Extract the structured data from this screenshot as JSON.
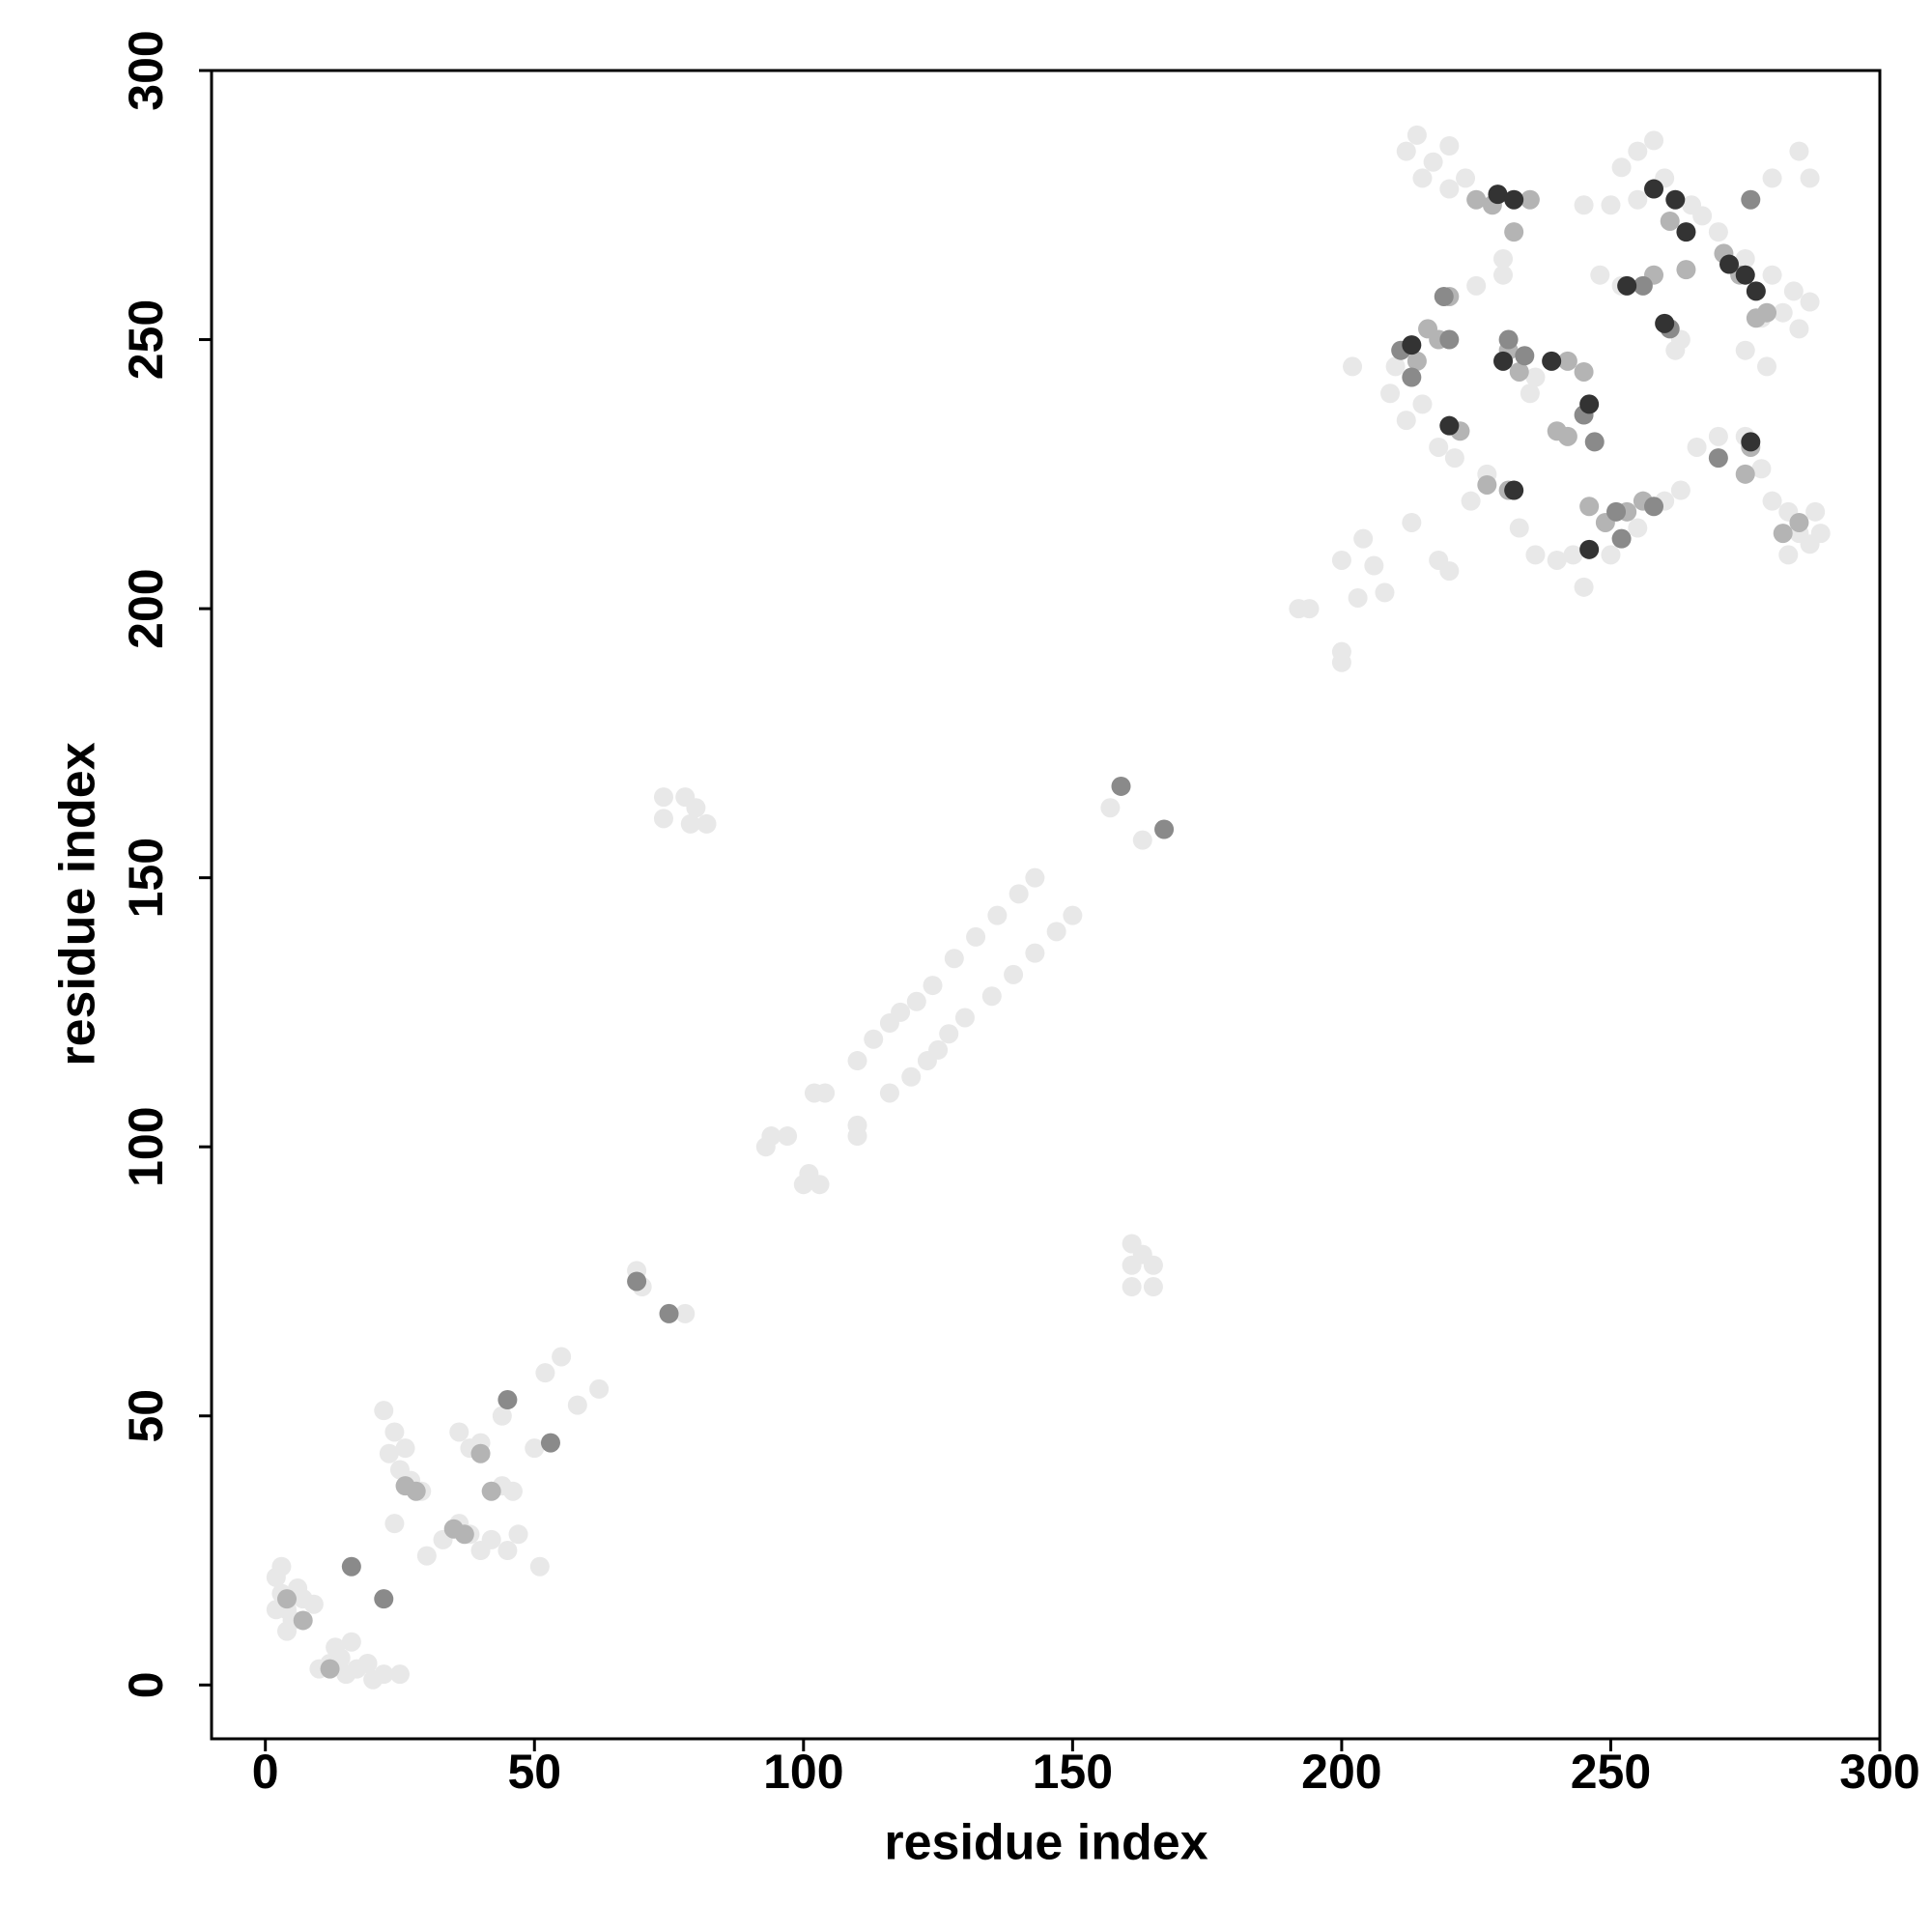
{
  "chart_data": {
    "type": "scatter",
    "xlabel": "residue index",
    "ylabel": "residue index",
    "xlim": [
      -10,
      300
    ],
    "ylim": [
      -10,
      300
    ],
    "xticks": [
      0,
      50,
      100,
      150,
      200,
      250,
      300
    ],
    "yticks": [
      0,
      50,
      100,
      150,
      200,
      250,
      300
    ],
    "grid": false,
    "series": [
      {
        "color": "#e8e8e8",
        "x": [
          2,
          3,
          4,
          5,
          3,
          6,
          2,
          4,
          7,
          9,
          10,
          12,
          14,
          15,
          17,
          19,
          22,
          25,
          13,
          16,
          20,
          22,
          24,
          25,
          27,
          26,
          29,
          24,
          30,
          36,
          38,
          40,
          36,
          38,
          40,
          44,
          46,
          47,
          45,
          42,
          23,
          33,
          44,
          50,
          52,
          55,
          58,
          62,
          51,
          69,
          70,
          75,
          78,
          74,
          78,
          80,
          74,
          79,
          82,
          161,
          163,
          165,
          161,
          161,
          165,
          93,
          94,
          97,
          100,
          101,
          103,
          102,
          104,
          110,
          110,
          110,
          113,
          116,
          118,
          121,
          124,
          128,
          132,
          136,
          140,
          143,
          116,
          120,
          123,
          125,
          127,
          130,
          135,
          139,
          143,
          147,
          150,
          157,
          163,
          192,
          194,
          200,
          200,
          200,
          202,
          203,
          204,
          206,
          208,
          213,
          218,
          220,
          212,
          214,
          217,
          220,
          215,
          220,
          223,
          225,
          230,
          230,
          236,
          235,
          210,
          209,
          212,
          215,
          218,
          221,
          224,
          227,
          233,
          236,
          240,
          243,
          245,
          250,
          255,
          260,
          263,
          266,
          270,
          275,
          278,
          280,
          283,
          285,
          287,
          289,
          288,
          283,
          285,
          287,
          284,
          282,
          280,
          285,
          287,
          275,
          270,
          265,
          260,
          255,
          258,
          252,
          250,
          245,
          248,
          252,
          262,
          263,
          275,
          279,
          278,
          280,
          267,
          255
        ],
        "y": [
          20,
          17,
          14,
          12,
          22,
          18,
          14,
          10,
          16,
          15,
          3,
          4,
          5,
          2,
          3,
          4,
          2,
          2,
          7,
          8,
          1,
          51,
          47,
          40,
          38,
          44,
          36,
          30,
          24,
          30,
          28,
          25,
          47,
          44,
          45,
          37,
          36,
          28,
          25,
          27,
          43,
          27,
          50,
          44,
          58,
          61,
          52,
          55,
          22,
          77,
          74,
          69,
          69,
          165,
          165,
          163,
          161,
          160,
          160,
          82,
          80,
          78,
          78,
          74,
          74,
          100,
          102,
          102,
          93,
          95,
          93,
          110,
          110,
          102,
          104,
          116,
          120,
          123,
          125,
          127,
          130,
          135,
          139,
          143,
          147,
          150,
          110,
          113,
          116,
          118,
          121,
          124,
          128,
          132,
          136,
          140,
          143,
          163,
          157,
          200,
          200,
          192,
          190,
          209,
          245,
          202,
          213,
          208,
          203,
          216,
          209,
          207,
          285,
          288,
          283,
          286,
          280,
          278,
          280,
          260,
          265,
          262,
          243,
          240,
          245,
          240,
          235,
          238,
          230,
          228,
          220,
          225,
          215,
          210,
          209,
          210,
          204,
          210,
          215,
          220,
          222,
          230,
          232,
          232,
          226,
          220,
          218,
          214,
          212,
          214,
          218,
          210,
          252,
          257,
          259,
          255,
          280,
          285,
          280,
          265,
          270,
          275,
          280,
          285,
          287,
          282,
          275,
          275,
          262,
          260,
          248,
          250,
          248,
          245,
          254,
          262,
          273,
          276
        ]
      },
      {
        "color": "#b4b4b4",
        "x": [
          4,
          7,
          12,
          26,
          28,
          35,
          37,
          42,
          40,
          214,
          216,
          218,
          220,
          222,
          227,
          231,
          231,
          233,
          240,
          242,
          246,
          249,
          253,
          256,
          258,
          261,
          264,
          271,
          274,
          277,
          279,
          275,
          276,
          282,
          285,
          225,
          228,
          232,
          235,
          242,
          245
        ],
        "y": [
          16,
          12,
          3,
          37,
          36,
          29,
          28,
          36,
          43,
          246,
          252,
          250,
          258,
          233,
          223,
          222,
          248,
          244,
          233,
          232,
          219,
          216,
          218,
          220,
          262,
          272,
          263,
          266,
          262,
          254,
          255,
          225,
          230,
          214,
          216,
          276,
          275,
          270,
          276,
          246,
          244
        ]
      },
      {
        "color": "#8a8a8a",
        "x": [
          22,
          16,
          45,
          53,
          69,
          75,
          159,
          167,
          211,
          213,
          219,
          231,
          234,
          245,
          247,
          251,
          252,
          258,
          261,
          256,
          276,
          270,
          220
        ],
        "y": [
          16,
          22,
          53,
          45,
          75,
          69,
          167,
          159,
          248,
          243,
          258,
          250,
          247,
          236,
          231,
          218,
          213,
          219,
          252,
          260,
          276,
          228,
          250
        ]
      },
      {
        "color": "#333333",
        "x": [
          220,
          229,
          232,
          239,
          246,
          253,
          260,
          258,
          262,
          264,
          272,
          275,
          277,
          276,
          246,
          232,
          213,
          230
        ],
        "y": [
          234,
          277,
          276,
          246,
          238,
          260,
          253,
          278,
          276,
          270,
          264,
          262,
          259,
          231,
          211,
          222,
          249,
          246
        ]
      }
    ]
  }
}
